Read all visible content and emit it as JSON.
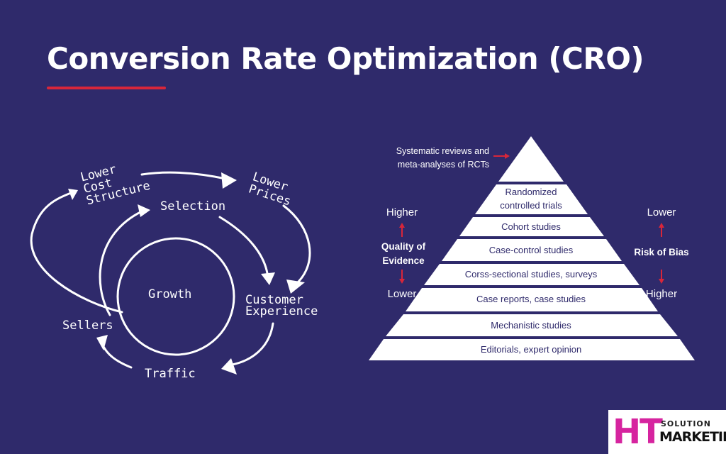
{
  "title": "Conversion Rate Optimization (CRO)",
  "flywheel": {
    "center": "Growth",
    "lower_cost": [
      "Lower",
      "Cost",
      "Structure"
    ],
    "lower_prices": [
      "Lower",
      "Prices"
    ],
    "selection": "Selection",
    "customer_experience": [
      "Customer",
      "Experience"
    ],
    "traffic": "Traffic",
    "sellers": "Sellers"
  },
  "pyramid": {
    "note": [
      "Systematic reviews and",
      "meta-analyses of RCTs"
    ],
    "levels": [
      [
        "Randomized",
        "controlled trials"
      ],
      [
        "Cohort studies"
      ],
      [
        "Case-control studies"
      ],
      [
        "Corss-sectional studies, surveys"
      ],
      [
        "Case reports, case studies"
      ],
      [
        "Mechanistic studies"
      ],
      [
        "Editorials, expert opinion"
      ]
    ],
    "quality": {
      "top": "Higher",
      "label": [
        "Quality of",
        "Evidence"
      ],
      "bottom": "Lower"
    },
    "bias": {
      "top": "Lower",
      "label": "Risk of Bias",
      "bottom": "Higher"
    }
  },
  "logo": {
    "ht": "HT",
    "solution": "SOLUTION",
    "marketing": "MARKETING"
  },
  "colors": {
    "background": "#2f2a6b",
    "accent": "#d8263a",
    "pyramid_fill": "#ffffff"
  }
}
